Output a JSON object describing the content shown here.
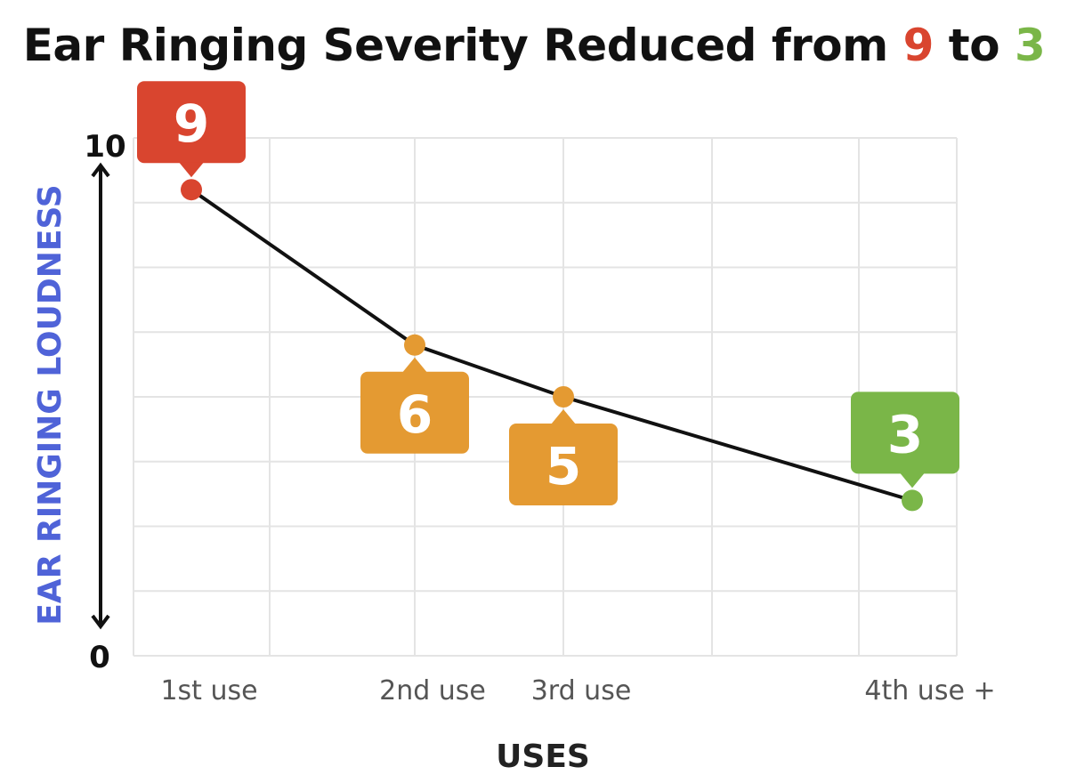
{
  "chart_data": {
    "type": "line",
    "title": {
      "prefix": "Ear Ringing Severity Reduced from ",
      "start": "9",
      "middle": " to ",
      "end": "3"
    },
    "xlabel": "USES",
    "ylabel": "EAR RINGING LOUDNESS",
    "ylim": [
      0,
      10
    ],
    "y_ticks": [
      "0",
      "10"
    ],
    "grid": true,
    "categories": [
      "1st use",
      "2nd use",
      "3rd use",
      "4th use +"
    ],
    "values": [
      9,
      6,
      5,
      3
    ],
    "labels": [
      "9",
      "6",
      "5",
      "3"
    ],
    "colors": [
      "#d9452f",
      "#e49a32",
      "#e49a32",
      "#7ab648"
    ],
    "axis_label_color": "#4f63d8",
    "line_color": "#111111"
  }
}
